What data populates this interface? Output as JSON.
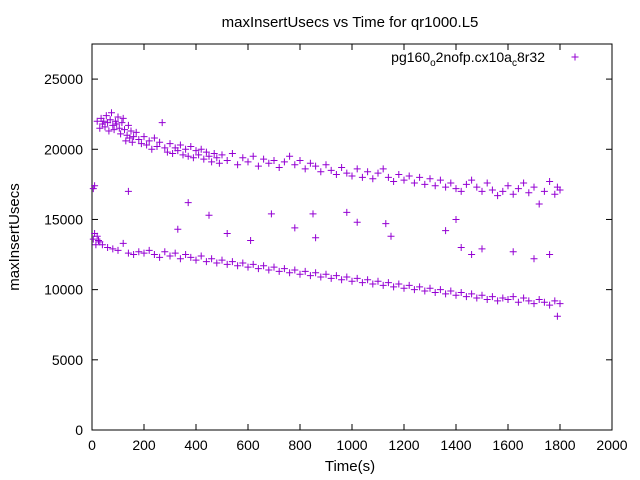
{
  "chart_data": {
    "type": "scatter",
    "title": "maxInsertUsecs vs Time for qr1000.L5",
    "xlabel": "Time(s)",
    "ylabel": "maxInsertUsecs",
    "xlim": [
      0,
      2000
    ],
    "ylim": [
      0,
      27500
    ],
    "x_ticks": [
      "0",
      "200",
      "400",
      "600",
      "800",
      "1000",
      "1200",
      "1400",
      "1600",
      "1800",
      "2000"
    ],
    "y_ticks": [
      "0",
      "5000",
      "10000",
      "15000",
      "20000",
      "25000"
    ],
    "grid": false,
    "marker": "+",
    "legend_position": "top-right",
    "series": [
      {
        "name_parts": [
          "pg160",
          "o",
          "2nofp.cx10a",
          "c",
          "8r32"
        ],
        "color": "#9400d3",
        "points": [
          [
            5,
            17200
          ],
          [
            10,
            17400
          ],
          [
            5,
            13600
          ],
          [
            10,
            14000
          ],
          [
            15,
            13200
          ],
          [
            20,
            13800
          ],
          [
            25,
            13500
          ],
          [
            30,
            13400
          ],
          [
            20,
            22000
          ],
          [
            30,
            21500
          ],
          [
            35,
            22200
          ],
          [
            40,
            21800
          ],
          [
            45,
            22000
          ],
          [
            50,
            21600
          ],
          [
            55,
            22400
          ],
          [
            60,
            21900
          ],
          [
            65,
            21300
          ],
          [
            70,
            22100
          ],
          [
            75,
            22600
          ],
          [
            80,
            21700
          ],
          [
            85,
            21400
          ],
          [
            90,
            22000
          ],
          [
            95,
            21800
          ],
          [
            100,
            22300
          ],
          [
            105,
            21500
          ],
          [
            110,
            21100
          ],
          [
            115,
            21900
          ],
          [
            120,
            22200
          ],
          [
            125,
            21400
          ],
          [
            130,
            20600
          ],
          [
            135,
            21000
          ],
          [
            140,
            21700
          ],
          [
            145,
            20800
          ],
          [
            150,
            21300
          ],
          [
            155,
            20500
          ],
          [
            160,
            20900
          ],
          [
            170,
            21200
          ],
          [
            180,
            20700
          ],
          [
            190,
            20400
          ],
          [
            200,
            20900
          ],
          [
            210,
            20300
          ],
          [
            220,
            20600
          ],
          [
            230,
            20000
          ],
          [
            240,
            20800
          ],
          [
            250,
            20200
          ],
          [
            260,
            20500
          ],
          [
            270,
            21900
          ],
          [
            280,
            20100
          ],
          [
            290,
            19800
          ],
          [
            300,
            20400
          ],
          [
            310,
            19700
          ],
          [
            320,
            20100
          ],
          [
            330,
            19900
          ],
          [
            340,
            20300
          ],
          [
            350,
            19600
          ],
          [
            360,
            20000
          ],
          [
            370,
            19500
          ],
          [
            380,
            20200
          ],
          [
            390,
            19400
          ],
          [
            400,
            19900
          ],
          [
            410,
            19600
          ],
          [
            420,
            20000
          ],
          [
            430,
            19300
          ],
          [
            440,
            19800
          ],
          [
            450,
            19500
          ],
          [
            460,
            19100
          ],
          [
            470,
            19700
          ],
          [
            480,
            19400
          ],
          [
            490,
            19000
          ],
          [
            500,
            19600
          ],
          [
            520,
            19200
          ],
          [
            540,
            19700
          ],
          [
            560,
            18900
          ],
          [
            580,
            19400
          ],
          [
            600,
            19100
          ],
          [
            620,
            19500
          ],
          [
            640,
            18800
          ],
          [
            660,
            19300
          ],
          [
            680,
            19000
          ],
          [
            700,
            19200
          ],
          [
            720,
            18700
          ],
          [
            740,
            19100
          ],
          [
            760,
            19500
          ],
          [
            780,
            18900
          ],
          [
            800,
            19200
          ],
          [
            820,
            18600
          ],
          [
            840,
            19000
          ],
          [
            860,
            18800
          ],
          [
            880,
            18400
          ],
          [
            900,
            18900
          ],
          [
            920,
            18500
          ],
          [
            940,
            18200
          ],
          [
            960,
            18700
          ],
          [
            980,
            18300
          ],
          [
            1000,
            18100
          ],
          [
            1020,
            18600
          ],
          [
            1040,
            18000
          ],
          [
            1060,
            18400
          ],
          [
            1080,
            17900
          ],
          [
            1100,
            18300
          ],
          [
            1120,
            18600
          ],
          [
            1140,
            18000
          ],
          [
            1160,
            17700
          ],
          [
            1180,
            18200
          ],
          [
            1200,
            17800
          ],
          [
            1220,
            18100
          ],
          [
            1240,
            17600
          ],
          [
            1260,
            18000
          ],
          [
            1280,
            17500
          ],
          [
            1300,
            17900
          ],
          [
            1320,
            17400
          ],
          [
            1340,
            17800
          ],
          [
            1360,
            17300
          ],
          [
            1380,
            17600
          ],
          [
            1400,
            17200
          ],
          [
            1420,
            17000
          ],
          [
            1440,
            17500
          ],
          [
            1460,
            17800
          ],
          [
            1480,
            17300
          ],
          [
            1500,
            17000
          ],
          [
            1520,
            17600
          ],
          [
            1540,
            17100
          ],
          [
            1560,
            16700
          ],
          [
            1580,
            17000
          ],
          [
            1600,
            17400
          ],
          [
            1620,
            16800
          ],
          [
            1640,
            17200
          ],
          [
            1660,
            17600
          ],
          [
            1680,
            16900
          ],
          [
            1700,
            17300
          ],
          [
            1720,
            16100
          ],
          [
            1740,
            17000
          ],
          [
            1760,
            17700
          ],
          [
            1780,
            16800
          ],
          [
            1790,
            17300
          ],
          [
            1800,
            17100
          ],
          [
            40,
            13200
          ],
          [
            60,
            13000
          ],
          [
            80,
            12900
          ],
          [
            100,
            12800
          ],
          [
            120,
            13300
          ],
          [
            140,
            12600
          ],
          [
            160,
            12500
          ],
          [
            180,
            12700
          ],
          [
            200,
            12600
          ],
          [
            220,
            12800
          ],
          [
            240,
            12500
          ],
          [
            260,
            12300
          ],
          [
            280,
            12700
          ],
          [
            300,
            12400
          ],
          [
            320,
            12600
          ],
          [
            340,
            12200
          ],
          [
            360,
            12500
          ],
          [
            380,
            12300
          ],
          [
            400,
            12100
          ],
          [
            420,
            12400
          ],
          [
            440,
            12000
          ],
          [
            460,
            12200
          ],
          [
            480,
            11900
          ],
          [
            500,
            12100
          ],
          [
            520,
            11800
          ],
          [
            540,
            12000
          ],
          [
            560,
            11700
          ],
          [
            580,
            11900
          ],
          [
            600,
            11600
          ],
          [
            620,
            11800
          ],
          [
            640,
            11500
          ],
          [
            660,
            11700
          ],
          [
            680,
            11400
          ],
          [
            700,
            11600
          ],
          [
            720,
            11300
          ],
          [
            740,
            11500
          ],
          [
            760,
            11200
          ],
          [
            780,
            11400
          ],
          [
            800,
            11100
          ],
          [
            820,
            11300
          ],
          [
            840,
            11000
          ],
          [
            860,
            11200
          ],
          [
            880,
            10900
          ],
          [
            900,
            11100
          ],
          [
            920,
            10800
          ],
          [
            940,
            11000
          ],
          [
            960,
            10700
          ],
          [
            980,
            10900
          ],
          [
            1000,
            10600
          ],
          [
            1020,
            10800
          ],
          [
            1040,
            10500
          ],
          [
            1060,
            10700
          ],
          [
            1080,
            10400
          ],
          [
            1100,
            10600
          ],
          [
            1120,
            10300
          ],
          [
            1140,
            10500
          ],
          [
            1160,
            10200
          ],
          [
            1180,
            10400
          ],
          [
            1200,
            10100
          ],
          [
            1220,
            10300
          ],
          [
            1240,
            10000
          ],
          [
            1260,
            10200
          ],
          [
            1280,
            9900
          ],
          [
            1300,
            10100
          ],
          [
            1320,
            9800
          ],
          [
            1340,
            10000
          ],
          [
            1360,
            9700
          ],
          [
            1380,
            9900
          ],
          [
            1400,
            9600
          ],
          [
            1420,
            9800
          ],
          [
            1440,
            9500
          ],
          [
            1460,
            9700
          ],
          [
            1480,
            9400
          ],
          [
            1500,
            9600
          ],
          [
            1520,
            9300
          ],
          [
            1540,
            9500
          ],
          [
            1560,
            9200
          ],
          [
            1580,
            9400
          ],
          [
            1600,
            9300
          ],
          [
            1620,
            9500
          ],
          [
            1640,
            9100
          ],
          [
            1660,
            9400
          ],
          [
            1680,
            9200
          ],
          [
            1700,
            9000
          ],
          [
            1720,
            9300
          ],
          [
            1740,
            9100
          ],
          [
            1760,
            8900
          ],
          [
            1780,
            9200
          ],
          [
            1790,
            8100
          ],
          [
            1800,
            9000
          ],
          [
            140,
            17000
          ],
          [
            370,
            16200
          ],
          [
            450,
            15300
          ],
          [
            690,
            15400
          ],
          [
            850,
            15400
          ],
          [
            980,
            15500
          ],
          [
            1020,
            14800
          ],
          [
            1130,
            14700
          ],
          [
            1400,
            15000
          ],
          [
            1420,
            13000
          ],
          [
            1460,
            12500
          ],
          [
            330,
            14300
          ],
          [
            520,
            14000
          ],
          [
            610,
            13500
          ],
          [
            780,
            14400
          ],
          [
            860,
            13700
          ],
          [
            1150,
            13800
          ],
          [
            1360,
            14200
          ],
          [
            1500,
            12900
          ],
          [
            1620,
            12700
          ],
          [
            1700,
            12200
          ],
          [
            1760,
            12500
          ]
        ]
      }
    ]
  }
}
